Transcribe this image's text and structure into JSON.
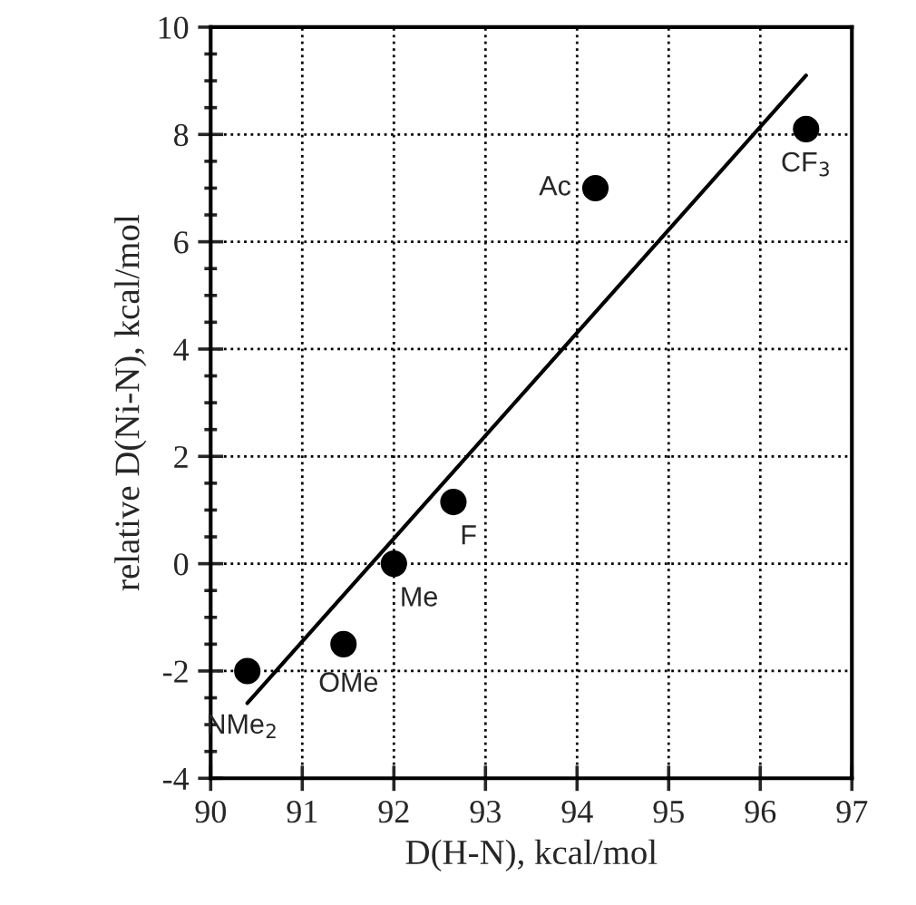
{
  "chart_data": {
    "type": "scatter",
    "xlabel": "D(H-N), kcal/mol",
    "ylabel": "relative D(Ni-N), kcal/mol",
    "series": [
      {
        "color": "#000000",
        "marker": "circle",
        "x": [
          90.4,
          91.45,
          92.0,
          92.65,
          94.2,
          96.5
        ],
        "values": [
          -2.0,
          -1.5,
          0.0,
          1.15,
          7.0,
          8.1
        ]
      },
      {
        "type": "line",
        "color": "#000000",
        "marker": "none",
        "line_style": "solid",
        "x": [
          90.4,
          96.5
        ],
        "values": [
          -2.6,
          9.1
        ]
      }
    ],
    "annotations": [
      {
        "text": "NMe$_{2}$",
        "x": 90.4,
        "y": -2.0
      },
      {
        "text": "OMe",
        "x": 91.45,
        "y": -1.5
      },
      {
        "text": "Me",
        "x": 92.0,
        "y": 0.0
      },
      {
        "text": "F",
        "x": 92.65,
        "y": 1.15
      },
      {
        "text": "Ac",
        "x": 94.2,
        "y": 7.0
      },
      {
        "text": "CF$_{3}$",
        "x": 96.5,
        "y": 8.1
      }
    ],
    "xlim": [
      90,
      97
    ],
    "xticks": [
      90,
      91,
      92,
      93,
      94,
      95,
      96,
      97
    ],
    "ylim": [
      -4,
      10
    ],
    "yticks": [
      -4,
      {
        "value": -3.5,
        "label": null
      },
      {
        "value": -3,
        "label": null
      },
      {
        "value": -2.5,
        "label": null
      },
      -2,
      {
        "value": -1.5,
        "label": null
      },
      {
        "value": -1,
        "label": null
      },
      {
        "value": -0.5,
        "label": null
      },
      0,
      {
        "value": 0.5,
        "label": null
      },
      {
        "value": 1,
        "label": null
      },
      {
        "value": 1.5,
        "label": null
      },
      2,
      {
        "value": 2.5,
        "label": null
      },
      {
        "value": 3,
        "label": null
      },
      {
        "value": 3.5,
        "label": null
      },
      4,
      {
        "value": 4.5,
        "label": null
      },
      {
        "value": 5,
        "label": null
      },
      {
        "value": 5.5,
        "label": null
      },
      6,
      {
        "value": 6.5,
        "label": null
      },
      {
        "value": 7,
        "label": null
      },
      {
        "value": 7.5,
        "label": null
      },
      8,
      {
        "value": 8.5,
        "label": null
      },
      {
        "value": 9,
        "label": null
      },
      {
        "value": 9.5,
        "label": null
      },
      10
    ],
    "grid": true
  }
}
